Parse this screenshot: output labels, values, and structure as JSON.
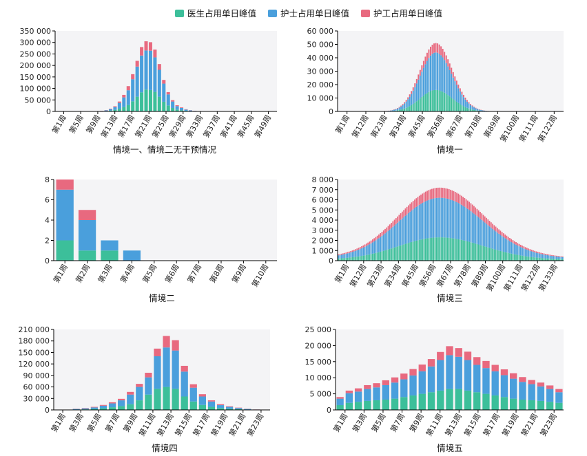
{
  "colors": {
    "doctor": "#3cbf9a",
    "nurse": "#4a9fdc",
    "worker": "#e8697f",
    "axis": "#000000",
    "panel_bg": "#f4f4f6"
  },
  "legend": [
    {
      "label": "医生占用单日峰值",
      "color": "#3cbf9a"
    },
    {
      "label": "护士占用单日峰值",
      "color": "#4a9fdc"
    },
    {
      "label": "护工占用单日峰值",
      "color": "#e8697f"
    }
  ],
  "chart_data": [
    {
      "id": "p1",
      "type": "bar",
      "stacked": true,
      "title": "情境一、情境二无干预情况",
      "n_categories": 50,
      "xtick_labels": [
        "第1周",
        "第5周",
        "第9周",
        "第13周",
        "第17周",
        "第21周",
        "第25周",
        "第29周",
        "第33周",
        "第37周",
        "第41周",
        "第45周",
        "第49周"
      ],
      "ylim": [
        0,
        350000
      ],
      "yticks": [
        0,
        50000,
        100000,
        150000,
        200000,
        250000,
        300000,
        350000
      ],
      "ytick_labels": [
        "0",
        "50 000",
        "100 000",
        "150 000",
        "200 000",
        "250 000",
        "300 000",
        "350 000"
      ],
      "series": [
        {
          "name": "医生占用单日峰值",
          "values": [
            0,
            0,
            0,
            0,
            0,
            0,
            0,
            0,
            0,
            0,
            1000,
            2000,
            4000,
            7000,
            12000,
            19000,
            28000,
            44000,
            64000,
            83000,
            95000,
            93000,
            85000,
            64000,
            42000,
            26000,
            15000,
            8000,
            5000,
            3000,
            1500,
            800,
            400,
            200,
            0,
            0,
            0,
            0,
            0,
            0,
            0,
            0,
            0,
            0,
            0,
            0,
            0,
            0,
            0,
            0
          ]
        },
        {
          "name": "护士占用单日峰值",
          "values": [
            0,
            0,
            0,
            0,
            0,
            0,
            0,
            0,
            0,
            0,
            1000,
            3000,
            6000,
            12000,
            25000,
            42000,
            64000,
            96000,
            131000,
            160000,
            170000,
            171000,
            150000,
            117000,
            79000,
            48000,
            28000,
            15000,
            10000,
            5000,
            3000,
            1500,
            800,
            300,
            0,
            0,
            0,
            0,
            0,
            0,
            0,
            0,
            0,
            0,
            0,
            0,
            0,
            0,
            0,
            0
          ]
        },
        {
          "name": "护工占用单日峰值",
          "values": [
            0,
            0,
            0,
            0,
            0,
            0,
            0,
            0,
            0,
            0,
            500,
            1000,
            2000,
            3500,
            6000,
            11000,
            18000,
            22000,
            25000,
            37000,
            40000,
            37000,
            34000,
            25000,
            16000,
            10000,
            6000,
            4000,
            2500,
            1500,
            800,
            500,
            200,
            100,
            0,
            0,
            0,
            0,
            0,
            0,
            0,
            0,
            0,
            0,
            0,
            0,
            0,
            0,
            0,
            0
          ]
        }
      ]
    },
    {
      "id": "p2",
      "type": "bar",
      "stacked": true,
      "title": "情境一",
      "n_categories": 130,
      "gaussian": {
        "peak_index": 56,
        "sigma_left": 9,
        "sigma_right": 9.5,
        "doctor_peak": 16000,
        "nurse_peak": 28000,
        "worker_peak": 7000
      },
      "xtick_labels": [
        "第1周",
        "第12周",
        "第23周",
        "第34周",
        "第45周",
        "第56周",
        "第67周",
        "第78周",
        "第89周",
        "第100周",
        "第111周",
        "第122周"
      ],
      "ylim": [
        0,
        60000
      ],
      "yticks": [
        0,
        10000,
        20000,
        30000,
        40000,
        50000,
        60000
      ],
      "ytick_labels": [
        "0",
        "10 000",
        "20 000",
        "30 000",
        "40 000",
        "50 000",
        "60 000"
      ]
    },
    {
      "id": "p3",
      "type": "bar",
      "stacked": true,
      "title": "情境二",
      "categories": [
        "第1周",
        "第2周",
        "第3周",
        "第4周",
        "第5周",
        "第6周",
        "第7周",
        "第8周",
        "第9周",
        "第10周"
      ],
      "xtick_labels": [
        "第1周",
        "第2周",
        "第3周",
        "第4周",
        "第5周",
        "第6周",
        "第7周",
        "第8周",
        "第9周",
        "第10周"
      ],
      "ylim": [
        0,
        8
      ],
      "yticks": [
        0,
        2,
        4,
        6,
        8
      ],
      "ytick_labels": [
        "0",
        "2",
        "4",
        "6",
        "8"
      ],
      "series": [
        {
          "name": "医生占用单日峰值",
          "values": [
            2,
            1,
            1,
            0,
            0,
            0,
            0,
            0,
            0,
            0
          ]
        },
        {
          "name": "护士占用单日峰值",
          "values": [
            5,
            3,
            1,
            1,
            0,
            0,
            0,
            0,
            0,
            0
          ]
        },
        {
          "name": "护工占用单日峰值",
          "values": [
            1,
            1,
            0,
            0,
            0,
            0,
            0,
            0,
            0,
            0
          ]
        }
      ]
    },
    {
      "id": "p4",
      "type": "bar",
      "stacked": true,
      "title": "情境三",
      "n_categories": 145,
      "gaussian": {
        "peak_index": 65,
        "sigma_left": 26,
        "sigma_right": 28,
        "doctor_peak": 2300,
        "nurse_peak": 3900,
        "worker_peak": 1000,
        "baseline": 400
      },
      "xtick_labels": [
        "第1周",
        "第12周",
        "第23周",
        "第34周",
        "第45周",
        "第56周",
        "第67周",
        "第78周",
        "第89周",
        "第100周",
        "第111周",
        "第122周",
        "第133周"
      ],
      "ylim": [
        0,
        8000
      ],
      "yticks": [
        0,
        1000,
        2000,
        3000,
        4000,
        5000,
        6000,
        7000,
        8000
      ],
      "ytick_labels": [
        "0",
        "1 000",
        "2 000",
        "3 000",
        "4 000",
        "5 000",
        "6 000",
        "7 000",
        "8 000"
      ]
    },
    {
      "id": "p5",
      "type": "bar",
      "stacked": true,
      "title": "情境四",
      "n_categories": 24,
      "xtick_labels": [
        "第1周",
        "第3周",
        "第5周",
        "第7周",
        "第9周",
        "第11周",
        "第13周",
        "第15周",
        "第17周",
        "第19周",
        "第21周",
        "第23周"
      ],
      "ylim": [
        0,
        210000
      ],
      "yticks": [
        0,
        30000,
        60000,
        90000,
        120000,
        150000,
        180000,
        210000
      ],
      "ytick_labels": [
        "0",
        "30 000",
        "60 000",
        "90 000",
        "120 000",
        "150 000",
        "180 000",
        "210 000"
      ],
      "series": [
        {
          "name": "医生占用单日峰值",
          "values": [
            0,
            0,
            1000,
            1500,
            2500,
            4500,
            7000,
            10000,
            15000,
            25000,
            40000,
            55000,
            60000,
            55000,
            35000,
            22000,
            13000,
            8000,
            5000,
            3000,
            2000,
            1000,
            500,
            0
          ]
        },
        {
          "name": "护士占用单日峰值",
          "values": [
            0,
            0,
            1500,
            2500,
            4000,
            6500,
            10000,
            15000,
            25000,
            35000,
            45000,
            85000,
            103000,
            100000,
            65000,
            36000,
            22000,
            14000,
            7500,
            5000,
            3000,
            1500,
            500,
            0
          ]
        },
        {
          "name": "护工占用单日峰值",
          "values": [
            0,
            0,
            500,
            1000,
            1500,
            2000,
            3000,
            4000,
            7000,
            8000,
            12000,
            20000,
            30000,
            27000,
            15000,
            9000,
            6000,
            3000,
            2500,
            1500,
            1000,
            500,
            200,
            0
          ]
        }
      ]
    },
    {
      "id": "p6",
      "type": "bar",
      "stacked": true,
      "title": "情境五",
      "n_categories": 25,
      "xtick_labels": [
        "第1周",
        "第3周",
        "第5周",
        "第7周",
        "第9周",
        "第11周",
        "第13周",
        "第15周",
        "第17周",
        "第19周",
        "第21周",
        "第23周"
      ],
      "ylim": [
        0,
        25000
      ],
      "yticks": [
        0,
        5000,
        10000,
        15000,
        20000,
        25000
      ],
      "ytick_labels": [
        "0",
        "5 000",
        "10 000",
        "15 000",
        "20 000",
        "25 000"
      ],
      "series": [
        {
          "name": "医生占用单日峰值",
          "values": [
            1500,
            2200,
            2500,
            2800,
            3000,
            3200,
            3500,
            4000,
            4500,
            5000,
            5500,
            6000,
            6500,
            6500,
            6000,
            5500,
            5000,
            4500,
            4000,
            3500,
            3200,
            3000,
            2800,
            2500,
            2200
          ]
        },
        {
          "name": "护士占用单日峰值",
          "values": [
            2000,
            3000,
            3200,
            3700,
            4000,
            4500,
            5000,
            5500,
            6200,
            7000,
            8000,
            9500,
            10500,
            10000,
            9500,
            8500,
            8000,
            7500,
            6800,
            6200,
            5500,
            5000,
            4500,
            4000,
            3300
          ]
        },
        {
          "name": "护工占用单日峰值",
          "values": [
            500,
            800,
            1000,
            1200,
            1300,
            1500,
            1600,
            1800,
            2000,
            2100,
            2300,
            2500,
            2800,
            2700,
            2600,
            2400,
            2200,
            2000,
            1800,
            1700,
            1500,
            1300,
            1200,
            1100,
            1000
          ]
        }
      ]
    }
  ]
}
